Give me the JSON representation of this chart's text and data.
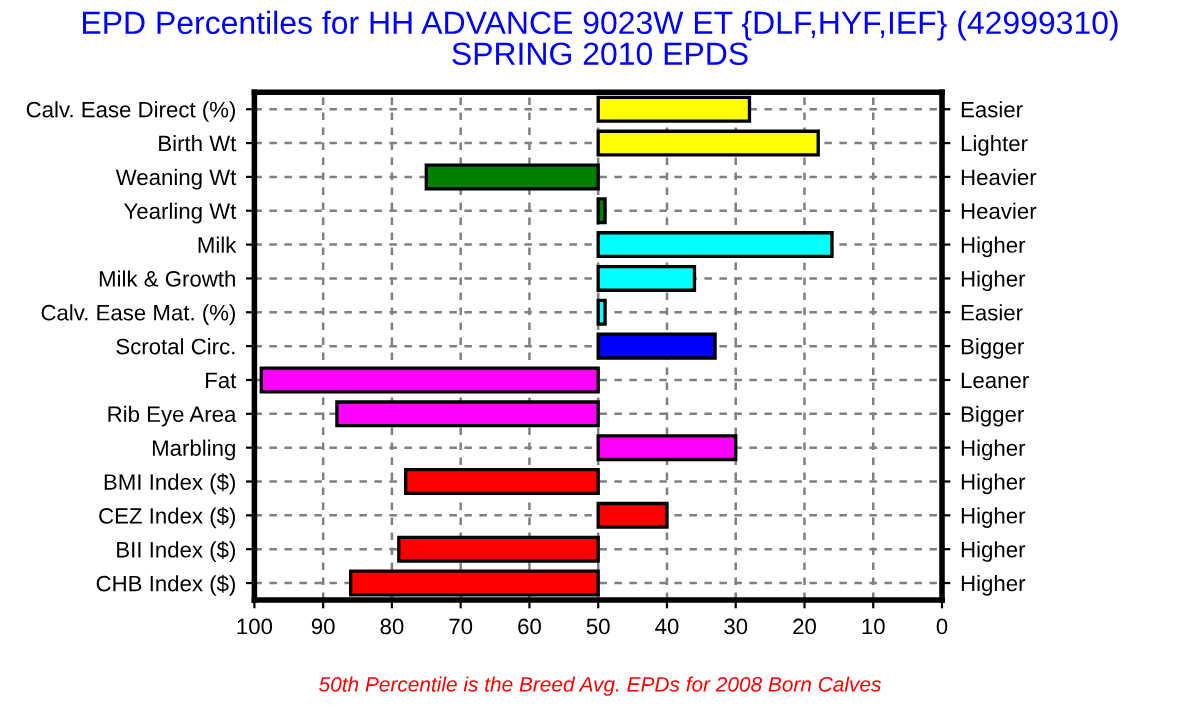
{
  "chart_data": {
    "type": "bar",
    "orientation": "horizontal",
    "title": "EPD Percentiles for HH ADVANCE 9023W ET {DLF,HYF,IEF} (42999310)\nSPRING 2010 EPDS",
    "categories": [
      "Calv. Ease Direct (%)",
      "Birth Wt",
      "Weaning Wt",
      "Yearling Wt",
      "Milk",
      "Milk & Growth",
      "Calv. Ease Mat. (%)",
      "Scrotal Circ.",
      "Fat",
      "Rib Eye Area",
      "Marbling",
      "BMI Index ($)",
      "CEZ Index ($)",
      "BII Index ($)",
      "CHB Index ($)"
    ],
    "y2_categories": [
      "Easier",
      "Lighter",
      "Heavier",
      "Heavier",
      "Higher",
      "Higher",
      "Easier",
      "Bigger",
      "Leaner",
      "Bigger",
      "Higher",
      "Higher",
      "Higher",
      "Higher",
      "Higher"
    ],
    "base": [
      50,
      50,
      50,
      50,
      50,
      50,
      50,
      50,
      50,
      50,
      50,
      50,
      50,
      50,
      50
    ],
    "values": [
      -22,
      -32,
      25,
      -1,
      -34,
      -14,
      -1,
      -17,
      49,
      38,
      -20,
      28,
      -10,
      29,
      36
    ],
    "colors": [
      "#ffff00",
      "#ffff00",
      "#008000",
      "#008000",
      "#00ffff",
      "#00ffff",
      "#00ffff",
      "#0000ff",
      "#ff00ff",
      "#ff00ff",
      "#ff00ff",
      "#ff0000",
      "#ff0000",
      "#ff0000",
      "#ff0000"
    ],
    "xlim": [
      100,
      0
    ],
    "xticks": [
      100,
      90,
      80,
      70,
      60,
      50,
      40,
      30,
      20,
      10,
      0
    ],
    "grid": true,
    "annotations": [
      "50th Percentile is the Breed Avg. EPDs for 2008 Born Calves"
    ]
  }
}
